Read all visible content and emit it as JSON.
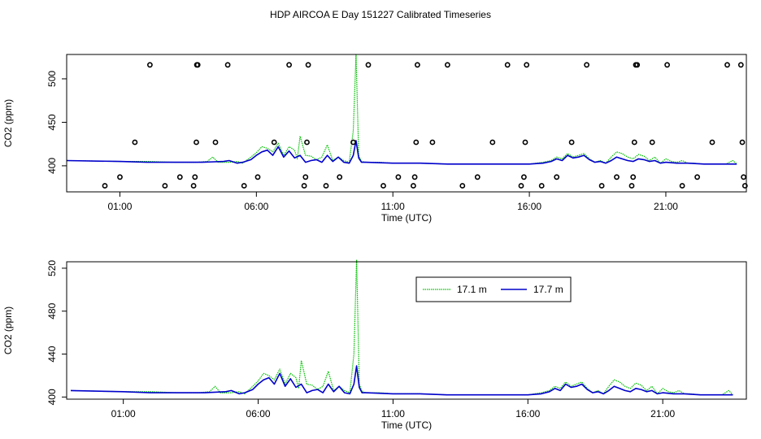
{
  "title": "HDP AIRCOA E  Day 151227  Calibrated Timeseries",
  "colors": {
    "series_green": "#00c000",
    "series_blue": "#0000cc",
    "axis": "#000000"
  },
  "chart_data": [
    {
      "type": "scatter+line",
      "xlabel": "Time (UTC)",
      "ylabel": "CO2 (ppm)",
      "xlim": [
        -0.95,
        23.95
      ],
      "ylim": [
        370,
        528
      ],
      "x_ticks": [
        1,
        6,
        11,
        16,
        21
      ],
      "x_tick_labels": [
        "01:00",
        "06:00",
        "11:00",
        "16:00",
        "21:00"
      ],
      "y_ticks": [
        400,
        450,
        500
      ],
      "y_tick_labels": [
        "400",
        "450",
        "500"
      ],
      "legend": "none",
      "grid": false,
      "points": {
        "name": "",
        "x": [
          0.45,
          1.0,
          1.55,
          2.1,
          2.65,
          3.2,
          3.7,
          3.75,
          3.8,
          3.82,
          3.85,
          4.5,
          4.95,
          5.55,
          6.05,
          6.65,
          7.2,
          7.75,
          7.8,
          7.85,
          7.9,
          8.55,
          9.05,
          9.55,
          10.1,
          10.65,
          11.2,
          11.75,
          11.8,
          11.85,
          11.9,
          12.45,
          13.0,
          13.55,
          14.1,
          14.65,
          15.2,
          15.7,
          15.8,
          15.85,
          15.9,
          16.45,
          17.0,
          17.55,
          18.1,
          18.65,
          19.2,
          19.75,
          19.8,
          19.85,
          19.9,
          19.95,
          20.5,
          21.05,
          21.6,
          22.15,
          22.7,
          23.25,
          23.75,
          23.8,
          23.85,
          23.9
        ],
        "y": [
          377,
          387,
          427,
          516,
          377,
          387,
          377,
          387,
          427,
          516,
          516,
          427,
          516,
          377,
          387,
          427,
          516,
          377,
          387,
          427,
          516,
          377,
          387,
          427,
          516,
          377,
          387,
          377,
          387,
          427,
          516,
          427,
          516,
          377,
          387,
          427,
          516,
          377,
          387,
          427,
          516,
          377,
          387,
          427,
          516,
          377,
          387,
          377,
          387,
          427,
          516,
          516,
          427,
          516,
          377,
          387,
          427,
          516,
          516,
          427,
          387,
          377
        ]
      },
      "series": [
        {
          "name": "17.1 m",
          "x": [
            -0.95,
            1.0,
            2.0,
            3.0,
            3.8,
            4.2,
            4.4,
            4.6,
            5.0,
            5.3,
            5.5,
            5.8,
            6.0,
            6.2,
            6.4,
            6.6,
            6.8,
            7.0,
            7.2,
            7.4,
            7.5,
            7.6,
            7.8,
            8.0,
            8.2,
            8.4,
            8.6,
            8.8,
            9.0,
            9.2,
            9.4,
            9.55,
            9.65,
            9.75,
            9.85,
            10.0,
            10.5,
            11.0,
            12.0,
            13.0,
            14.0,
            15.0,
            15.5,
            16.0,
            16.5,
            16.8,
            17.0,
            17.2,
            17.4,
            17.6,
            17.8,
            18.0,
            18.2,
            18.4,
            18.6,
            18.8,
            19.0,
            19.2,
            19.4,
            19.6,
            19.8,
            20.0,
            20.2,
            20.4,
            20.6,
            20.8,
            21.0,
            21.2,
            21.4,
            21.6,
            21.8,
            22.0,
            22.4,
            22.8,
            23.2,
            23.45,
            23.6
          ],
          "y": [
            406,
            405,
            405,
            404,
            404,
            405,
            410,
            404,
            404,
            405,
            403,
            410,
            415,
            422,
            420,
            416,
            426,
            412,
            422,
            418,
            408,
            434,
            412,
            411,
            407,
            410,
            424,
            406,
            410,
            406,
            404,
            440,
            528,
            412,
            405,
            404,
            404,
            403,
            403,
            402,
            402,
            402,
            402,
            402,
            404,
            406,
            410,
            408,
            414,
            410,
            412,
            414,
            408,
            404,
            406,
            403,
            410,
            416,
            414,
            410,
            408,
            413,
            411,
            406,
            410,
            403,
            408,
            405,
            404,
            406,
            403,
            403,
            402,
            402,
            402,
            406,
            402
          ]
        },
        {
          "name": "17.7 m",
          "x": [
            -0.95,
            1.0,
            2.0,
            3.0,
            4.0,
            4.8,
            5.0,
            5.3,
            5.5,
            5.8,
            6.0,
            6.2,
            6.4,
            6.6,
            6.8,
            7.0,
            7.2,
            7.4,
            7.6,
            7.8,
            8.0,
            8.2,
            8.4,
            8.6,
            8.8,
            9.0,
            9.2,
            9.4,
            9.55,
            9.65,
            9.75,
            9.85,
            10.0,
            11.0,
            12.0,
            13.0,
            14.0,
            15.0,
            16.0,
            16.5,
            16.8,
            17.0,
            17.2,
            17.4,
            17.6,
            17.8,
            18.0,
            18.2,
            18.4,
            18.6,
            18.8,
            19.0,
            19.2,
            19.4,
            19.6,
            19.8,
            20.0,
            20.2,
            20.4,
            20.6,
            20.8,
            21.0,
            21.4,
            21.8,
            22.4,
            23.0,
            23.6
          ],
          "y": [
            406,
            405,
            404,
            404,
            404,
            405,
            406,
            403,
            404,
            407,
            412,
            416,
            418,
            412,
            422,
            410,
            417,
            409,
            412,
            404,
            406,
            407,
            404,
            412,
            405,
            410,
            404,
            403,
            412,
            429,
            409,
            404,
            404,
            403,
            403,
            402,
            402,
            402,
            402,
            403,
            405,
            408,
            406,
            412,
            409,
            410,
            412,
            407,
            404,
            405,
            403,
            406,
            410,
            408,
            406,
            405,
            408,
            407,
            405,
            406,
            403,
            404,
            403,
            403,
            402,
            402,
            402
          ]
        }
      ]
    },
    {
      "type": "line",
      "xlabel": "Time (UTC)",
      "ylabel": "CO2 (ppm)",
      "xlim": [
        -1.1,
        24.1
      ],
      "ylim": [
        398,
        526
      ],
      "x_ticks": [
        1,
        6,
        11,
        16,
        21
      ],
      "x_tick_labels": [
        "01:00",
        "06:00",
        "11:00",
        "16:00",
        "21:00"
      ],
      "y_ticks": [
        400,
        440,
        480,
        520
      ],
      "y_tick_labels": [
        "400",
        "440",
        "480",
        "520"
      ],
      "legend": "top-center",
      "grid": false,
      "series": [
        {
          "name": "17.1 m",
          "ref": 0
        },
        {
          "name": "17.7 m",
          "ref": 1
        }
      ]
    }
  ]
}
